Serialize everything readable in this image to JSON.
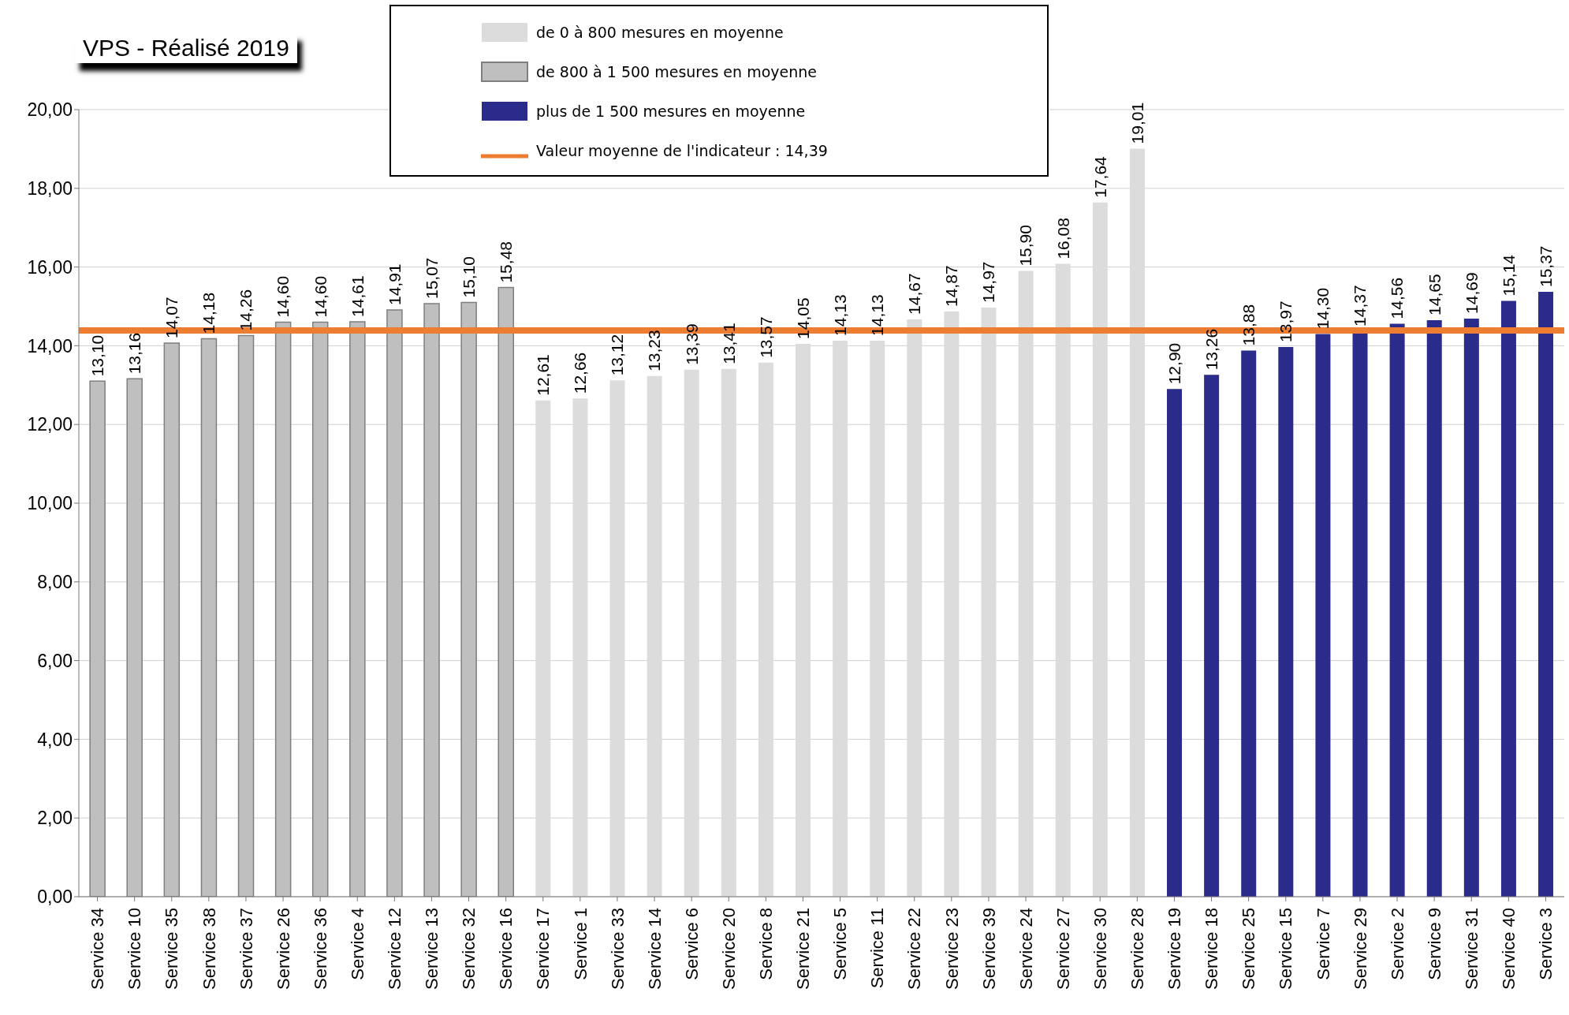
{
  "chart_data": {
    "type": "bar",
    "title": "VPS - Réalisé 2019",
    "categories": [
      "Service 34",
      "Service 10",
      "Service 35",
      "Service 38",
      "Service 37",
      "Service 26",
      "Service 36",
      "Service 4",
      "Service 12",
      "Service 13",
      "Service 32",
      "Service 16",
      "Service 17",
      "Service 1",
      "Service 33",
      "Service 14",
      "Service 6",
      "Service 20",
      "Service 8",
      "Service 21",
      "Service 5",
      "Service 11",
      "Service 22",
      "Service 23",
      "Service 39",
      "Service 24",
      "Service 27",
      "Service 30",
      "Service 28",
      "Service 19",
      "Service 18",
      "Service 25",
      "Service 15",
      "Service 7",
      "Service 29",
      "Service 2",
      "Service 9",
      "Service 31",
      "Service 40",
      "Service 3"
    ],
    "series": [
      {
        "name": "de 0  à 800 mesures en moyenne",
        "color": "#dcdcdc",
        "values": [
          null,
          null,
          null,
          null,
          null,
          null,
          null,
          null,
          null,
          null,
          null,
          null,
          12.61,
          12.66,
          13.12,
          13.23,
          13.39,
          13.41,
          13.57,
          14.05,
          14.13,
          14.13,
          14.67,
          14.87,
          14.97,
          15.9,
          16.08,
          17.64,
          19.01,
          null,
          null,
          null,
          null,
          null,
          null,
          null,
          null,
          null,
          null,
          null
        ],
        "value_labels": [
          null,
          null,
          null,
          null,
          null,
          null,
          null,
          null,
          null,
          null,
          null,
          null,
          "12,61",
          "12,66",
          "13,12",
          "13,23",
          "13,39",
          "13,41",
          "13,57",
          "14,05",
          "14,13",
          "14,13",
          "14,67",
          "14,87",
          "14,97",
          "15,90",
          "16,08",
          "17,64",
          "19,01",
          null,
          null,
          null,
          null,
          null,
          null,
          null,
          null,
          null,
          null,
          null
        ]
      },
      {
        "name": "de 800  à 1 500 mesures en moyenne",
        "color": "#bfbfbf",
        "values": [
          13.1,
          13.16,
          14.07,
          14.18,
          14.26,
          14.6,
          14.6,
          14.61,
          14.91,
          15.07,
          15.1,
          15.48,
          null,
          null,
          null,
          null,
          null,
          null,
          null,
          null,
          null,
          null,
          null,
          null,
          null,
          null,
          null,
          null,
          null,
          null,
          null,
          null,
          null,
          null,
          null,
          null,
          null,
          null,
          null,
          null
        ],
        "value_labels": [
          "13,10",
          "13,16",
          "14,07",
          "14,18",
          "14,26",
          "14,60",
          "14,60",
          "14,61",
          "14,91",
          "15,07",
          "15,10",
          "15,48",
          null,
          null,
          null,
          null,
          null,
          null,
          null,
          null,
          null,
          null,
          null,
          null,
          null,
          null,
          null,
          null,
          null,
          null,
          null,
          null,
          null,
          null,
          null,
          null,
          null,
          null,
          null,
          null
        ]
      },
      {
        "name": "plus de 1 500 mesures en moyenne",
        "color": "#2b2b8c",
        "values": [
          null,
          null,
          null,
          null,
          null,
          null,
          null,
          null,
          null,
          null,
          null,
          null,
          null,
          null,
          null,
          null,
          null,
          null,
          null,
          null,
          null,
          null,
          null,
          null,
          null,
          null,
          null,
          null,
          null,
          12.9,
          13.26,
          13.88,
          13.97,
          14.3,
          14.37,
          14.56,
          14.65,
          14.69,
          15.14,
          15.37
        ],
        "value_labels": [
          null,
          null,
          null,
          null,
          null,
          null,
          null,
          null,
          null,
          null,
          null,
          null,
          null,
          null,
          null,
          null,
          null,
          null,
          null,
          null,
          null,
          null,
          null,
          null,
          null,
          null,
          null,
          null,
          null,
          "12,90",
          "13,26",
          "13,88",
          "13,97",
          "14,30",
          "14,37",
          "14,56",
          "14,65",
          "14,69",
          "15,14",
          "15,37"
        ]
      }
    ],
    "stacked": true,
    "ylim": [
      0,
      20
    ],
    "yticks": [
      {
        "value": 0,
        "label": "0,00"
      },
      {
        "value": 2,
        "label": "2,00"
      },
      {
        "value": 4,
        "label": "4,00"
      },
      {
        "value": 6,
        "label": "6,00"
      },
      {
        "value": 8,
        "label": "8,00"
      },
      {
        "value": 10,
        "label": "10,00"
      },
      {
        "value": 12,
        "label": "12,00"
      },
      {
        "value": 14,
        "label": "14,00"
      },
      {
        "value": 16,
        "label": "16,00"
      },
      {
        "value": 18,
        "label": "18,00"
      },
      {
        "value": 20,
        "label": "20,00"
      }
    ],
    "grid": "y",
    "legend": "top",
    "ref_lines": [
      {
        "axis": "y",
        "value": 14.39,
        "label": "Valeur moyenne de l'indicateur : 14,39",
        "color": "#ed7d31"
      }
    ]
  }
}
